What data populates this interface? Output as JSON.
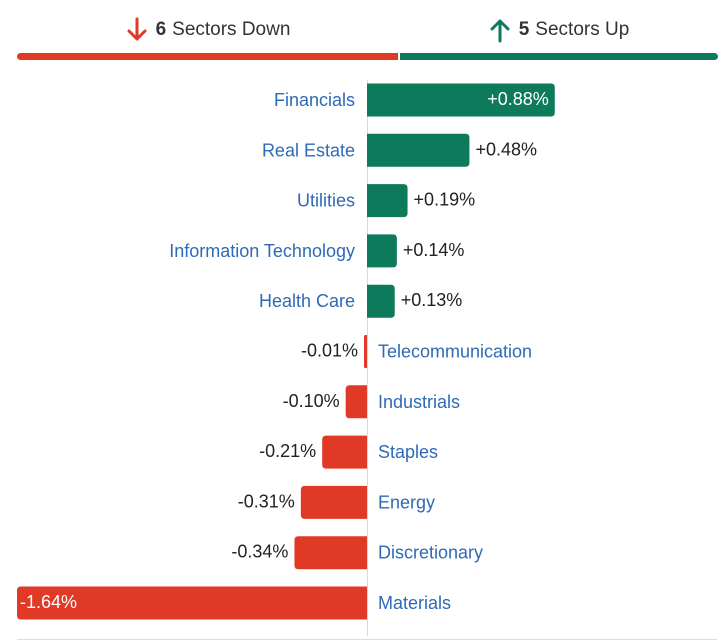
{
  "summary": {
    "down": {
      "count": "6",
      "label": "Sectors Down",
      "icon": "arrow-down-icon"
    },
    "up": {
      "count": "5",
      "label": "Sectors Up",
      "icon": "arrow-up-icon"
    }
  },
  "colors": {
    "positive": "#0e7a5c",
    "negative": "#e03a27",
    "label": "#2e6ab5"
  },
  "chart_data": {
    "type": "bar",
    "orientation": "horizontal",
    "unit": "%",
    "categories": [
      "Financials",
      "Real Estate",
      "Utilities",
      "Information Technology",
      "Health Care",
      "Telecommunication",
      "Industrials",
      "Staples",
      "Energy",
      "Discretionary",
      "Materials"
    ],
    "values": [
      0.88,
      0.48,
      0.19,
      0.14,
      0.13,
      -0.01,
      -0.1,
      -0.21,
      -0.31,
      -0.34,
      -1.64
    ],
    "value_labels": [
      "+0.88%",
      "+0.48%",
      "+0.19%",
      "+0.14%",
      "+0.13%",
      "-0.01%",
      "-0.10%",
      "-0.21%",
      "-0.31%",
      "-0.34%",
      "-1.64%"
    ],
    "xlim": [
      -1.64,
      1.64
    ],
    "grid": false,
    "legend": "none"
  }
}
